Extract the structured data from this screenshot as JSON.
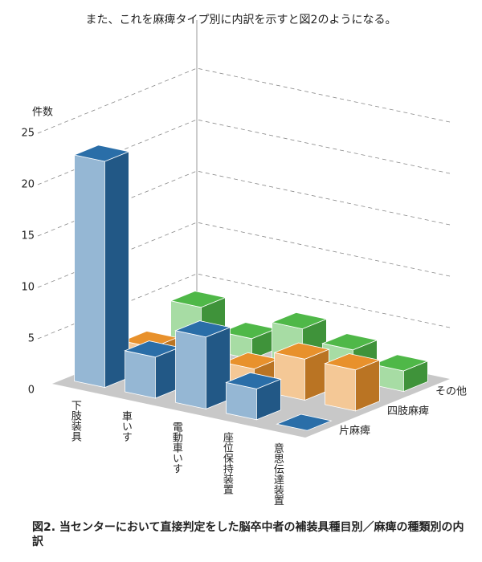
{
  "chart_data": {
    "type": "bar3d",
    "intro": "また、これを麻痺タイプ別に内訳を示すと図2のようになる。",
    "y_label": "件数",
    "caption": "図2. 当センターにおいて直接判定をした脳卒中者の補装具種目別／麻痺の種類別の内訳",
    "categories": [
      "下肢装具",
      "車いす",
      "電動車いす",
      "座位保持装置",
      "意思伝達装置"
    ],
    "series": [
      {
        "name": "片麻痺",
        "color": "#2a6ea8",
        "values": [
          22,
          4,
          7,
          3,
          0
        ]
      },
      {
        "name": "四肢麻痺",
        "color": "#e8912c",
        "values": [
          2,
          1,
          2,
          4,
          4
        ]
      },
      {
        "name": "その他",
        "color": "#4fb848",
        "values": [
          4,
          2,
          4,
          3,
          2
        ]
      }
    ],
    "ylim": [
      0,
      25
    ],
    "yticks": [
      0,
      5,
      10,
      15,
      20,
      25
    ],
    "grid": true
  }
}
